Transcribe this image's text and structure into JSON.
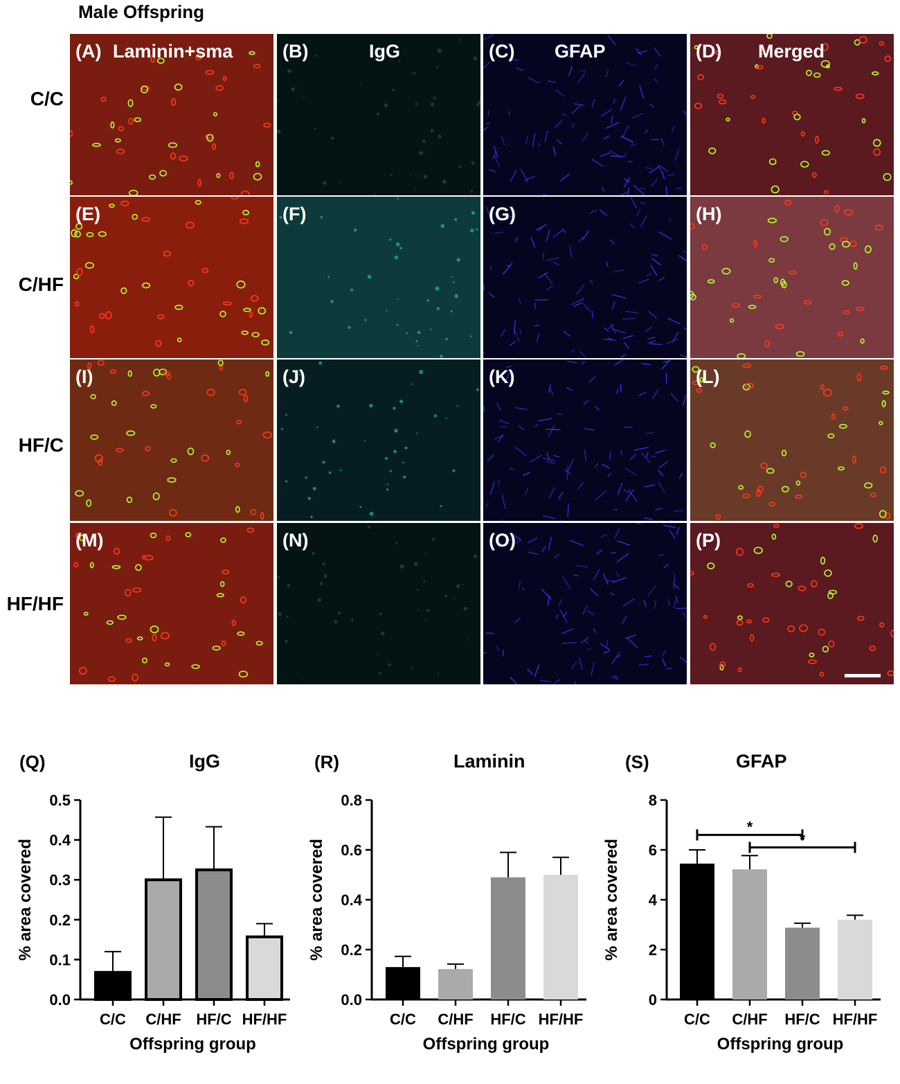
{
  "figure_title": "Male Offspring",
  "row_labels": [
    "C/C",
    "C/HF",
    "HF/C",
    "HF/HF"
  ],
  "column_titles": [
    "Laminin+sma",
    "IgG",
    "GFAP",
    "Merged"
  ],
  "panel_labels": [
    [
      "(A)",
      "(B)",
      "(C)",
      "(D)"
    ],
    [
      "(E)",
      "(F)",
      "(G)",
      "(H)"
    ],
    [
      "(I)",
      "(J)",
      "(K)",
      "(L)"
    ],
    [
      "(M)",
      "(N)",
      "(O)",
      "(P)"
    ]
  ],
  "panel_stains": [
    "laminin-sma",
    "igg",
    "gfap",
    "merged"
  ],
  "panel_colors": {
    "laminin_base": "#7a1c10",
    "igg_base": "#041414",
    "gfap_base": "#05051f",
    "merged_base": "#5a1a20",
    "vessel_red": "#ff3a1a",
    "vessel_green": "#b8ff30",
    "igg_cyan": "#2fc6c6",
    "gfap_blue": "#3a3aff"
  },
  "chart_data": [
    {
      "panel_label": "(Q)",
      "title": "IgG",
      "type": "bar",
      "categories": [
        "C/C",
        "C/HF",
        "HF/C",
        "HF/HF"
      ],
      "values": [
        0.068,
        0.3,
        0.325,
        0.157
      ],
      "errors": [
        0.052,
        0.157,
        0.108,
        0.033
      ],
      "colors": [
        "#000000",
        "#aaaaaa",
        "#8c8c8c",
        "#d9d9d9"
      ],
      "bar_outline": true,
      "xlabel": "Offspring group",
      "ylabel": "% area covered",
      "ylim": [
        0,
        0.5
      ],
      "yticks": [
        "0.0",
        "0.1",
        "0.2",
        "0.3",
        "0.4",
        "0.5"
      ],
      "significance": []
    },
    {
      "panel_label": "(R)",
      "title": "Laminin",
      "type": "bar",
      "categories": [
        "C/C",
        "C/HF",
        "HF/C",
        "HF/HF"
      ],
      "values": [
        0.13,
        0.122,
        0.49,
        0.5
      ],
      "errors": [
        0.043,
        0.02,
        0.1,
        0.07
      ],
      "colors": [
        "#000000",
        "#aaaaaa",
        "#8c8c8c",
        "#d9d9d9"
      ],
      "bar_outline": false,
      "xlabel": "Offspring group",
      "ylabel": "% area covered",
      "ylim": [
        0,
        0.8
      ],
      "yticks": [
        "0.0",
        "0.2",
        "0.4",
        "0.6",
        "0.8"
      ],
      "significance": []
    },
    {
      "panel_label": "(S)",
      "title": "GFAP",
      "type": "bar",
      "categories": [
        "C/C",
        "C/HF",
        "HF/C",
        "HF/HF"
      ],
      "values": [
        5.45,
        5.22,
        2.88,
        3.2
      ],
      "errors": [
        0.55,
        0.55,
        0.18,
        0.18
      ],
      "colors": [
        "#000000",
        "#aaaaaa",
        "#8c8c8c",
        "#d9d9d9"
      ],
      "bar_outline": false,
      "xlabel": "Offspring group",
      "ylabel": "% area covered",
      "ylim": [
        0,
        8
      ],
      "yticks": [
        "0",
        "2",
        "4",
        "6",
        "8"
      ],
      "significance": [
        {
          "from": 0,
          "to": 2,
          "y": 6.6,
          "label": "*"
        },
        {
          "from": 1,
          "to": 3,
          "y": 6.1,
          "label": "*"
        }
      ]
    }
  ]
}
